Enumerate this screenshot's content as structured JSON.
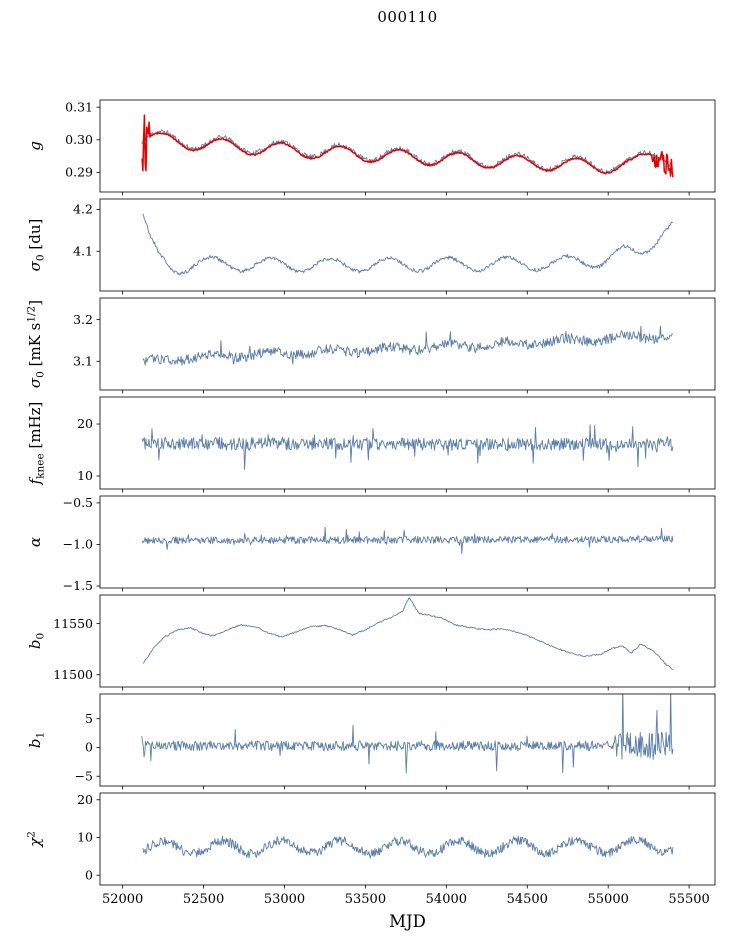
{
  "chart_data": {
    "type": "line",
    "title": "000110",
    "xlabel": "MJD",
    "x_ticks": [
      52000,
      52500,
      53000,
      53500,
      54000,
      54500,
      55000,
      55500
    ],
    "x_tick_labels": [
      "52000",
      "52500",
      "53000",
      "53500",
      "54000",
      "54500",
      "55000",
      "55500"
    ],
    "xlim": [
      51860,
      55660
    ],
    "line_color": "#5b7ea7",
    "fit_color": "#e50000",
    "grid": false,
    "legend": "none",
    "panels": [
      {
        "ylabel": [
          {
            "t": "g",
            "i": true
          }
        ],
        "ylim": [
          0.284,
          0.3122
        ],
        "yticks": [
          0.29,
          0.3,
          0.31
        ],
        "ytick_labels": [
          "0.29",
          "0.30",
          "0.31"
        ],
        "series": [
          {
            "name": "g-raw",
            "color": "#5b7ea7",
            "width": 0.9,
            "seed": 11,
            "n": 680,
            "x0": 52118,
            "x1": 55402,
            "trend": [
              [
                52118,
                0.3
              ],
              [
                52160,
                0.3012
              ],
              [
                52250,
                0.3003
              ],
              [
                52500,
                0.299
              ],
              [
                53000,
                0.2973
              ],
              [
                53500,
                0.2958
              ],
              [
                54000,
                0.2945
              ],
              [
                54500,
                0.2933
              ],
              [
                55000,
                0.2923
              ],
              [
                55150,
                0.2926
              ],
              [
                55260,
                0.2958
              ],
              [
                55330,
                0.2961
              ],
              [
                55402,
                0.2933
              ]
            ],
            "seasonal": {
              "period": 365,
              "amp": 0.0021,
              "phase": 52159
            },
            "noise": 0.0008,
            "spike_regions": [
              [
                52118,
                52142,
                0.004
              ]
            ]
          },
          {
            "name": "g-fit",
            "color": "#e50000",
            "width": 1.5,
            "seed": 12,
            "n": 680,
            "x0": 52120,
            "x1": 55400,
            "trend": [
              [
                52120,
                0.2996
              ],
              [
                52160,
                0.3008
              ],
              [
                52250,
                0.2999
              ],
              [
                52500,
                0.2986
              ],
              [
                53000,
                0.2969
              ],
              [
                53500,
                0.2954
              ],
              [
                54000,
                0.2941
              ],
              [
                54500,
                0.2929
              ],
              [
                55000,
                0.2919
              ],
              [
                55150,
                0.2922
              ],
              [
                55260,
                0.2954
              ],
              [
                55330,
                0.2957
              ],
              [
                55400,
                0.2929
              ]
            ],
            "seasonal": {
              "period": 365,
              "amp": 0.0021,
              "phase": 52159
            },
            "noise": 0.00025,
            "spike_regions": [
              [
                52120,
                52168,
                0.0095
              ],
              [
                55272,
                55400,
                0.0032
              ]
            ]
          }
        ]
      },
      {
        "ylabel": [
          {
            "t": "σ",
            "i": true
          },
          {
            "t": "0",
            "s": "sub"
          },
          {
            "t": " [du]"
          }
        ],
        "ylim": [
          4.005,
          4.225
        ],
        "yticks": [
          4.1,
          4.2
        ],
        "ytick_labels": [
          "4.1",
          "4.2"
        ],
        "series": [
          {
            "name": "sigma-du",
            "color": "#5b7ea7",
            "width": 0.9,
            "seed": 21,
            "n": 680,
            "x0": 52125,
            "x1": 55400,
            "trend": [
              [
                52125,
                4.182
              ],
              [
                52165,
                4.126
              ],
              [
                52220,
                4.086
              ],
              [
                52310,
                4.06
              ],
              [
                52460,
                4.071
              ],
              [
                53000,
                4.067
              ],
              [
                54000,
                4.069
              ],
              [
                54700,
                4.071
              ],
              [
                54950,
                4.079
              ],
              [
                55100,
                4.097
              ],
              [
                55180,
                4.091
              ],
              [
                55260,
                4.117
              ],
              [
                55330,
                4.149
              ],
              [
                55400,
                4.167
              ]
            ],
            "seasonal": {
              "period": 365,
              "amp": 0.016,
              "phase": 52459
            },
            "noise": 0.0045
          }
        ]
      },
      {
        "ylabel": [
          {
            "t": "σ",
            "i": true
          },
          {
            "t": "0",
            "s": "sub"
          },
          {
            "t": " [mK s"
          },
          {
            "t": "1/2",
            "s": "sup"
          },
          {
            "t": "]"
          }
        ],
        "ylim": [
          3.031,
          3.252
        ],
        "yticks": [
          3.1,
          3.2
        ],
        "ytick_labels": [
          "3.1",
          "3.2"
        ],
        "series": [
          {
            "name": "sigma-mk",
            "color": "#5b7ea7",
            "width": 0.9,
            "seed": 31,
            "n": 680,
            "x0": 52125,
            "x1": 55400,
            "trend": [
              [
                52125,
                3.096
              ],
              [
                52400,
                3.11
              ],
              [
                53000,
                3.12
              ],
              [
                53600,
                3.128
              ],
              [
                54200,
                3.138
              ],
              [
                54800,
                3.15
              ],
              [
                55100,
                3.157
              ],
              [
                55400,
                3.16
              ]
            ],
            "seasonal": {
              "period": 365,
              "amp": 0.006,
              "phase": 52459
            },
            "noise": 0.012,
            "spike_prob": 0.02,
            "spike_mult": 1.6
          }
        ]
      },
      {
        "ylabel": [
          {
            "t": "f",
            "i": true
          },
          {
            "t": "knee",
            "s": "sub"
          },
          {
            "t": " [mHz]"
          }
        ],
        "ylim": [
          7.5,
          25.2
        ],
        "yticks": [
          10,
          20
        ],
        "ytick_labels": [
          "10",
          "20"
        ],
        "series": [
          {
            "name": "f-knee",
            "color": "#5b7ea7",
            "width": 0.9,
            "seed": 41,
            "n": 700,
            "x0": 52120,
            "x1": 55400,
            "trend": [
              [
                52120,
                16.3
              ],
              [
                53500,
                16.1
              ],
              [
                55400,
                16.1
              ]
            ],
            "noise": 1.25,
            "spike_prob": 0.05,
            "spike_mult": 1.9
          }
        ]
      },
      {
        "ylabel": [
          {
            "t": "α",
            "i": true
          }
        ],
        "ylim": [
          -1.524,
          -0.417
        ],
        "yticks": [
          -1.5,
          -1.0,
          -0.5
        ],
        "ytick_labels": [
          "−1.5",
          "−1.0",
          "−0.5"
        ],
        "series": [
          {
            "name": "alpha",
            "color": "#5b7ea7",
            "width": 0.9,
            "seed": 51,
            "n": 700,
            "x0": 52120,
            "x1": 55400,
            "trend": [
              [
                52120,
                -0.952
              ],
              [
                55400,
                -0.938
              ]
            ],
            "noise": 0.042,
            "spike_prob": 0.04,
            "spike_mult": 1.7
          }
        ]
      },
      {
        "ylabel": [
          {
            "t": "b",
            "i": true
          },
          {
            "t": "0",
            "s": "sub"
          }
        ],
        "ylim": [
          11488,
          11578
        ],
        "yticks": [
          11500,
          11550
        ],
        "ytick_labels": [
          "11500",
          "11550"
        ],
        "series": [
          {
            "name": "b0",
            "color": "#5b7ea7",
            "width": 0.9,
            "seed": 61,
            "n": 520,
            "x0": 52128,
            "x1": 55400,
            "trend": [
              [
                52128,
                11511
              ],
              [
                52190,
                11526
              ],
              [
                52260,
                11537
              ],
              [
                52340,
                11544
              ],
              [
                52420,
                11546
              ],
              [
                52500,
                11540
              ],
              [
                52560,
                11538
              ],
              [
                52650,
                11544
              ],
              [
                52730,
                11549
              ],
              [
                52820,
                11547
              ],
              [
                52900,
                11541
              ],
              [
                52980,
                11537
              ],
              [
                53060,
                11541
              ],
              [
                53160,
                11547
              ],
              [
                53260,
                11548
              ],
              [
                53340,
                11544
              ],
              [
                53420,
                11539
              ],
              [
                53500,
                11544
              ],
              [
                53580,
                11551
              ],
              [
                53660,
                11556
              ],
              [
                53730,
                11562
              ],
              [
                53770,
                11576
              ],
              [
                53800,
                11568
              ],
              [
                53830,
                11560
              ],
              [
                53900,
                11558
              ],
              [
                53980,
                11555
              ],
              [
                54050,
                11549
              ],
              [
                54150,
                11546
              ],
              [
                54250,
                11544
              ],
              [
                54350,
                11545
              ],
              [
                54450,
                11541
              ],
              [
                54550,
                11535
              ],
              [
                54650,
                11528
              ],
              [
                54750,
                11522
              ],
              [
                54850,
                11518
              ],
              [
                54950,
                11520
              ],
              [
                55030,
                11526
              ],
              [
                55090,
                11528
              ],
              [
                55140,
                11521
              ],
              [
                55200,
                11530
              ],
              [
                55260,
                11525
              ],
              [
                55310,
                11519
              ],
              [
                55350,
                11511
              ],
              [
                55400,
                11505
              ]
            ],
            "noise": 0.7
          }
        ]
      },
      {
        "ylabel": [
          {
            "t": "b",
            "i": true
          },
          {
            "t": "1",
            "s": "sub"
          }
        ],
        "ylim": [
          -6.7,
          9.3
        ],
        "yticks": [
          -5,
          0,
          5
        ],
        "ytick_labels": [
          "−5",
          "0",
          "5"
        ],
        "series": [
          {
            "name": "b1",
            "color": "#5b7ea7",
            "width": 0.9,
            "seed": 71,
            "n": 700,
            "x0": 52118,
            "x1": 55400,
            "trend": [
              [
                52118,
                0.3
              ],
              [
                55400,
                0.3
              ]
            ],
            "noise": 0.85,
            "spike_prob": 0.025,
            "spike_mult": 2.6,
            "spike_regions": [
              [
                52118,
                52140,
                3.2
              ],
              [
                55040,
                55400,
                2.4
              ]
            ]
          }
        ]
      },
      {
        "ylabel": [
          {
            "t": "χ",
            "i": true
          },
          {
            "t": "2",
            "s": "sup"
          }
        ],
        "ylim": [
          -2.6,
          21.8
        ],
        "yticks": [
          0,
          10,
          20
        ],
        "ytick_labels": [
          "0",
          "10",
          "20"
        ],
        "series": [
          {
            "name": "chi2",
            "color": "#5b7ea7",
            "width": 0.9,
            "seed": 81,
            "n": 700,
            "x0": 52125,
            "x1": 55400,
            "trend": [
              [
                52125,
                7.3
              ],
              [
                53000,
                7.5
              ],
              [
                54000,
                7.4
              ],
              [
                55000,
                7.6
              ],
              [
                55400,
                7.8
              ]
            ],
            "seasonal": {
              "period": 365,
              "amp": 1.7,
              "phase": 52159
            },
            "noise": 1.25
          }
        ]
      }
    ]
  }
}
